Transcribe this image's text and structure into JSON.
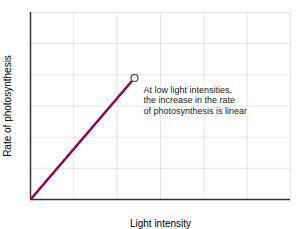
{
  "chart_data": {
    "type": "line",
    "x": [
      0,
      0.4
    ],
    "values": [
      0,
      0.65
    ],
    "color": "#99004c",
    "xlabel": "Light intensity",
    "ylabel": "Rate of photosynthesis",
    "annotations": [
      "At low light intensities,\nthe increase in the rate\nof photosynthesis is linear"
    ],
    "xlim": [
      0,
      1
    ],
    "ylim": [
      0,
      1
    ],
    "xticks": [
      0,
      0.16666666666666666,
      0.3333333333333333,
      0.5,
      0.6666666666666666,
      0.8333333333333333,
      1
    ],
    "yticks": [
      0,
      0.16666666666666666,
      0.3333333333333333,
      0.5,
      0.6666666666666666,
      0.8333333333333333,
      1
    ],
    "grid": true,
    "tick_labels": false
  }
}
